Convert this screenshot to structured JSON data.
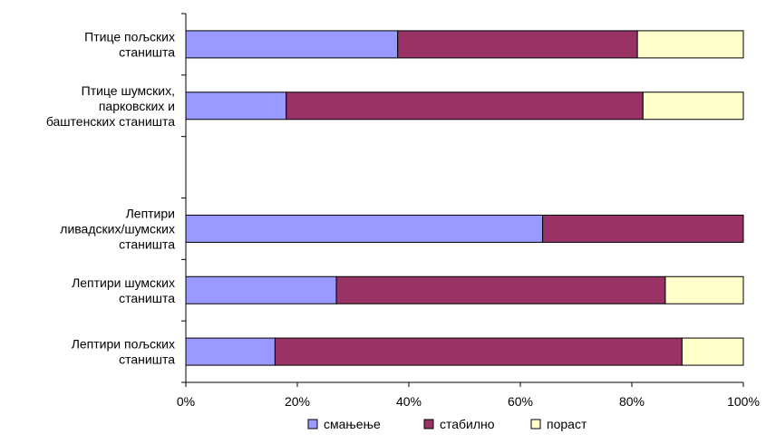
{
  "chart_data": {
    "type": "bar",
    "orientation": "horizontal",
    "stacked": "percent",
    "categories": [
      [
        "Птице пољских",
        "станишта"
      ],
      [
        "Птице шумских,",
        "парковских и",
        "баштенских станишта"
      ],
      [],
      [
        "Лептири",
        "ливадских/шумских",
        "станишта"
      ],
      [
        "Лептири шумских",
        "станишта"
      ],
      [
        "Лептири пољских",
        "станишта"
      ]
    ],
    "series": [
      {
        "name": "смањење",
        "color": "#9999ff",
        "values": [
          38,
          18,
          null,
          64,
          27,
          16
        ]
      },
      {
        "name": "стабилно",
        "color": "#993366",
        "values": [
          43,
          64,
          null,
          36,
          59,
          73
        ]
      },
      {
        "name": "пораст",
        "color": "#ffffcc",
        "values": [
          19,
          18,
          null,
          0,
          14,
          11
        ]
      }
    ],
    "xticks": [
      "0%",
      "20%",
      "40%",
      "60%",
      "80%",
      "100%"
    ],
    "xlim": [
      0,
      100
    ],
    "grid": false,
    "legend_position": "bottom"
  }
}
